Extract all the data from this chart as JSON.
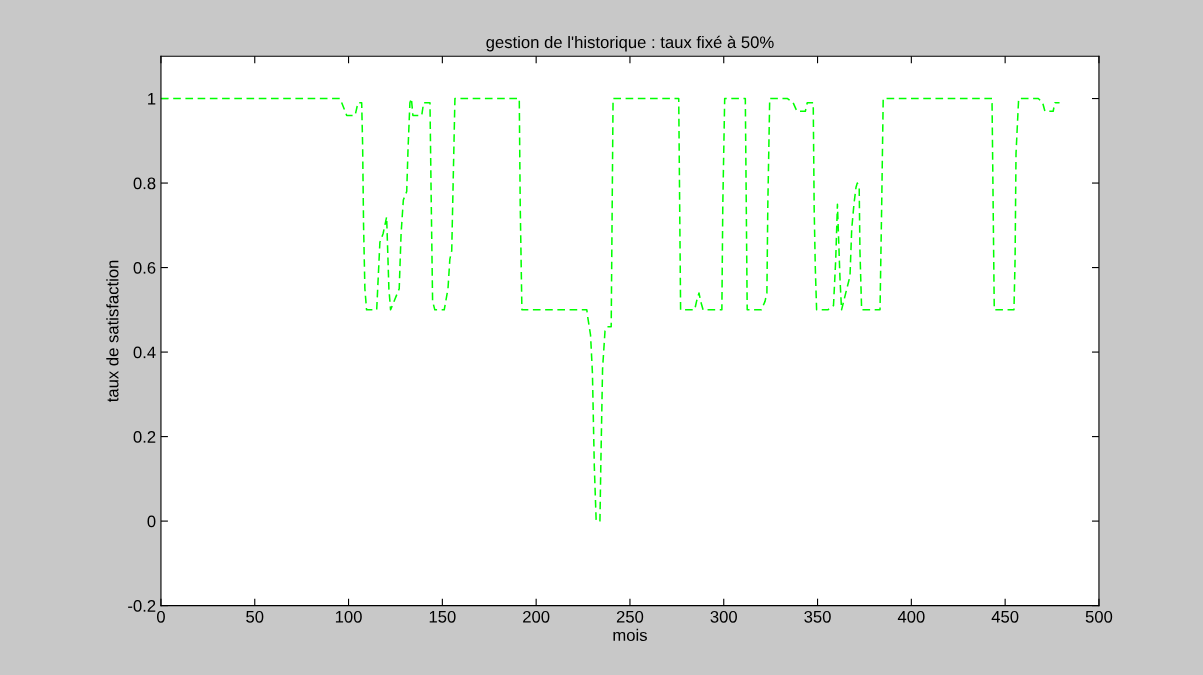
{
  "chart_data": {
    "type": "line",
    "title": "gestion de l'historique : taux fixé à 50%",
    "xlabel": "mois",
    "ylabel": "taux de satisfaction",
    "xlim": [
      0,
      500
    ],
    "ylim": [
      -0.2,
      1.1
    ],
    "xticks": [
      0,
      50,
      100,
      150,
      200,
      250,
      300,
      350,
      400,
      450,
      500
    ],
    "yticks": [
      -0.2,
      0,
      0.2,
      0.4,
      0.6,
      0.8,
      1
    ],
    "grid": false,
    "line_style": "dashed",
    "marker": "none",
    "series": [
      {
        "color": "#00ff00",
        "x": [
          0,
          95.5,
          99,
          103.5,
          105,
          107,
          107.5,
          108,
          108.7,
          109.6,
          115,
          116.7,
          118.4,
          120.3,
          121.5,
          122.4,
          127,
          128,
          129.2,
          131,
          131.7,
          132.7,
          133.5,
          134.3,
          139,
          140,
          143.4,
          144,
          144.8,
          146,
          151,
          153,
          154,
          155,
          155.8,
          156.7,
          191,
          191.5,
          192.4,
          227,
          227.6,
          229,
          230,
          231,
          232,
          234,
          234.5,
          235.4,
          236.7,
          238,
          240,
          240.5,
          241,
          276,
          276.5,
          277,
          284.5,
          285.5,
          286.8,
          287.7,
          289,
          299,
          299.5,
          300.5,
          311.5,
          312,
          312.5,
          320,
          322,
          323,
          323.5,
          324.5,
          334,
          337,
          339,
          343.5,
          344.5,
          347.7,
          348.2,
          348.8,
          349.5,
          355.5,
          358.5,
          359.7,
          360.6,
          361.6,
          362,
          362.8,
          367.3,
          368.2,
          369.4,
          370.5,
          371.2,
          372.2,
          372.6,
          373.5,
          383.3,
          384.2,
          385,
          443,
          443.6,
          444.2,
          454.7,
          455.3,
          455.8,
          457.2,
          467.7,
          470,
          471.2,
          475.6,
          476.5,
          479
        ],
        "values": [
          1,
          1,
          0.96,
          0.96,
          0.99,
          0.99,
          0.89,
          0.7,
          0.55,
          0.5,
          0.5,
          0.66,
          0.68,
          0.72,
          0.55,
          0.5,
          0.55,
          0.68,
          0.76,
          0.78,
          0.88,
          0.99,
          1,
          0.96,
          0.96,
          0.99,
          0.99,
          0.78,
          0.52,
          0.5,
          0.5,
          0.55,
          0.62,
          0.64,
          0.81,
          1,
          1,
          0.75,
          0.5,
          0.5,
          0.48,
          0.44,
          0.35,
          0.13,
          0,
          0,
          0.14,
          0.36,
          0.45,
          0.46,
          0.46,
          0.73,
          1,
          1,
          0.75,
          0.5,
          0.5,
          0.52,
          0.54,
          0.52,
          0.5,
          0.5,
          0.75,
          1,
          1,
          0.75,
          0.5,
          0.5,
          0.52,
          0.54,
          0.75,
          1,
          1,
          0.99,
          0.97,
          0.97,
          0.99,
          0.99,
          0.74,
          0.6,
          0.5,
          0.5,
          0.51,
          0.62,
          0.75,
          0.62,
          0.57,
          0.5,
          0.58,
          0.69,
          0.75,
          0.79,
          0.8,
          0.79,
          0.64,
          0.5,
          0.5,
          0.75,
          1,
          1,
          0.75,
          0.5,
          0.5,
          0.62,
          0.87,
          1,
          1,
          0.99,
          0.97,
          0.97,
          0.99,
          0.99
        ]
      }
    ]
  }
}
